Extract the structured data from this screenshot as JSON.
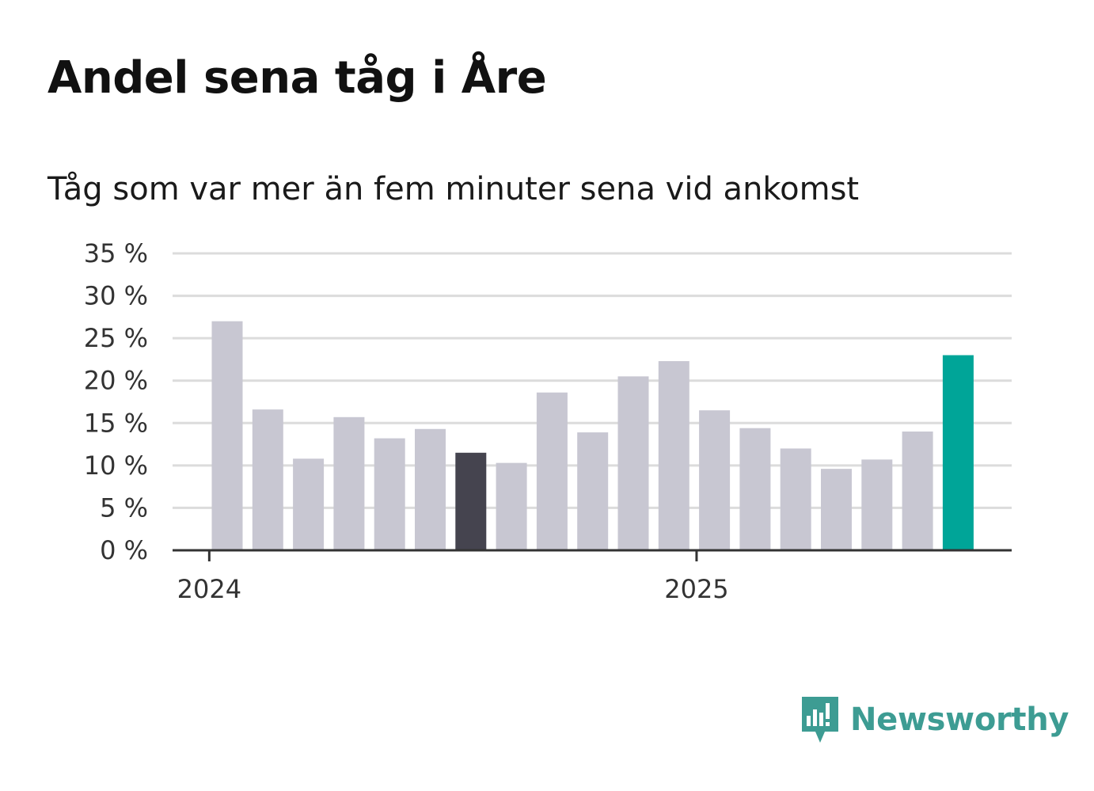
{
  "header": {
    "title": "Andel sena tåg i Åre",
    "subtitle": "Tåg som var mer än fem minuter sena vid ankomst"
  },
  "brand": {
    "name": "Newsworthy",
    "color": "#3d9c93"
  },
  "chart_data": {
    "type": "bar",
    "y_ticks": [
      "0 %",
      "5 %",
      "10 %",
      "15 %",
      "20 %",
      "25 %",
      "30 %",
      "35 %"
    ],
    "x_ticks": [
      {
        "label": "2024",
        "month_index": 0
      },
      {
        "label": "2025",
        "month_index": 12
      }
    ],
    "ylim": [
      0,
      35
    ],
    "grid": true,
    "values": [
      27.0,
      16.6,
      10.8,
      15.7,
      13.2,
      14.3,
      11.5,
      10.3,
      18.6,
      13.9,
      20.5,
      22.3,
      16.5,
      14.4,
      12.0,
      9.6,
      10.7,
      14.0,
      23.0
    ],
    "colors": {
      "default": "#c8c7d2",
      "reference": "#45444f",
      "latest": "#00a598",
      "grid": "#dcdcdc",
      "axis": "#333333"
    },
    "reference_index": 6,
    "latest_index": 18
  }
}
